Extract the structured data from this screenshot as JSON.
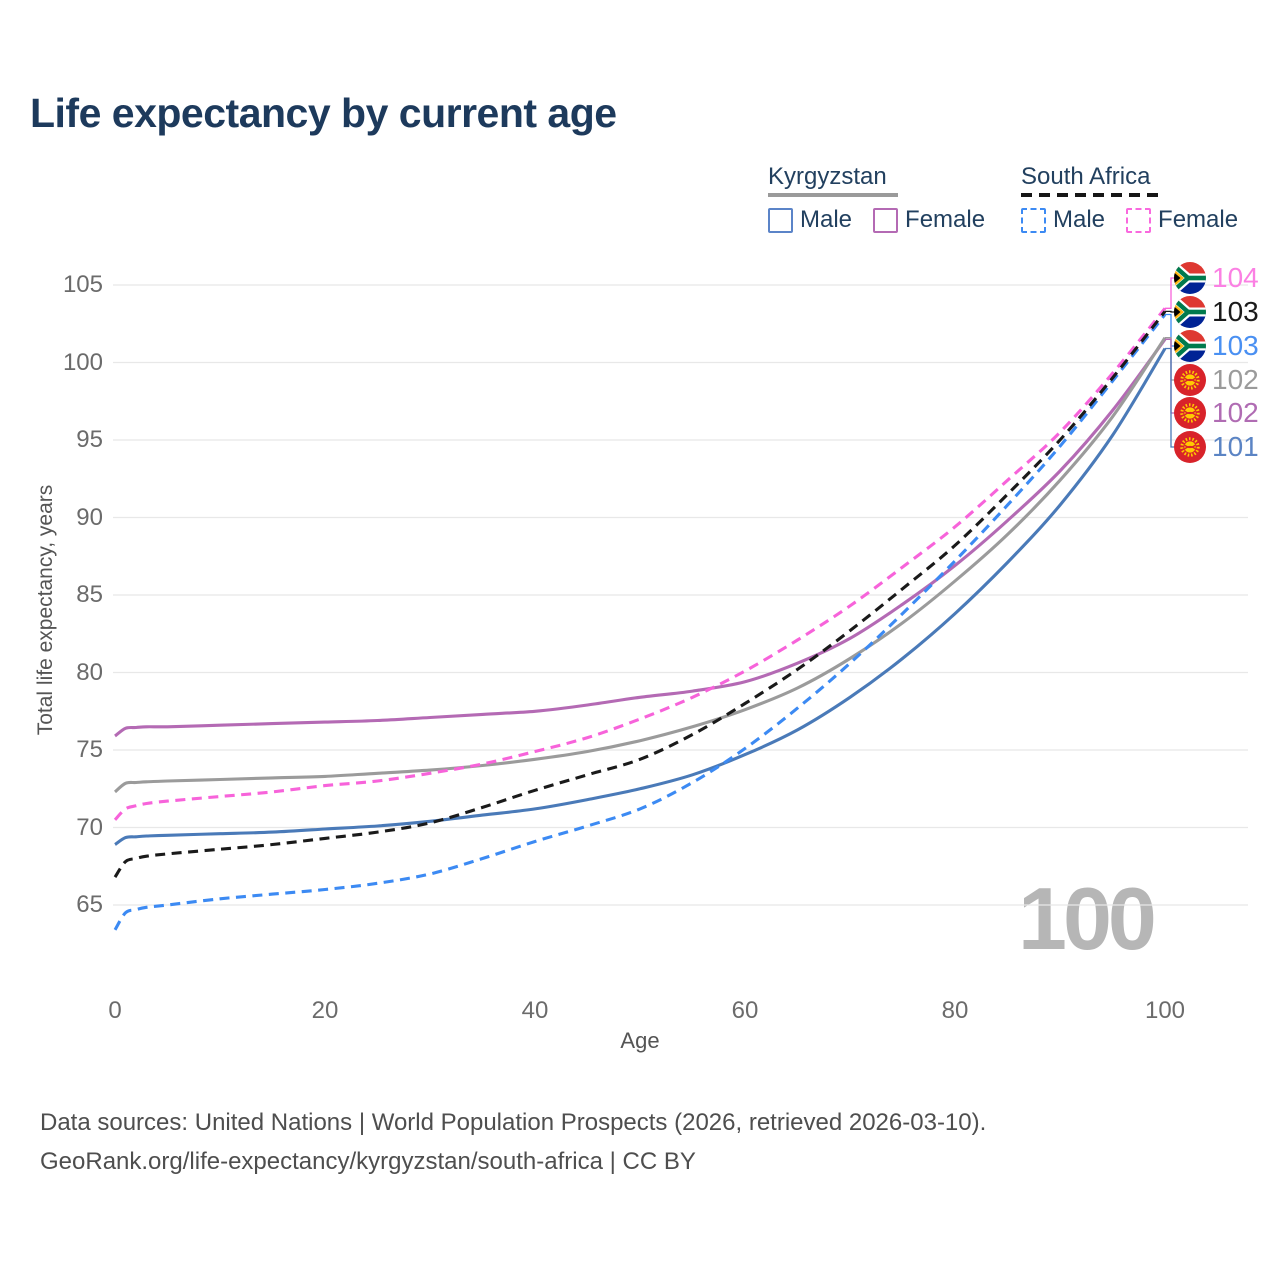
{
  "title": "Life expectancy by current age",
  "watermark": "100",
  "legend": {
    "groups": [
      {
        "country": "Kyrgyzstan",
        "line_style": "solid",
        "line_color": "#9a9a9a",
        "items": [
          {
            "label": "Male",
            "color": "#5b84c8",
            "dashed": false
          },
          {
            "label": "Female",
            "color": "#b46ab4",
            "dashed": false
          }
        ]
      },
      {
        "country": "South Africa",
        "line_style": "dashed",
        "line_color": "#161616",
        "items": [
          {
            "label": "Male",
            "color": "#3c8af3",
            "dashed": true
          },
          {
            "label": "Female",
            "color": "#f969de",
            "dashed": true
          }
        ]
      }
    ]
  },
  "footer": {
    "line1": "Data sources: United Nations | World Population Prospects (2026, retrieved 2026-03-10).",
    "line2": "GeoRank.org/life-expectancy/kyrgyzstan/south-africa | CC BY"
  },
  "chart_data": {
    "type": "line",
    "title": "Life expectancy by current age",
    "xlabel": "Age",
    "ylabel": "Total life expectancy, years",
    "xlim": [
      0,
      100
    ],
    "ylim": [
      63,
      105
    ],
    "x_ticks": [
      0,
      20,
      40,
      60,
      80,
      100
    ],
    "y_ticks": [
      65,
      70,
      75,
      80,
      85,
      90,
      95,
      100,
      105
    ],
    "grid": "horizontal",
    "legend_position": "top-right",
    "current_age_frame": "100",
    "x": [
      0,
      1,
      2,
      3,
      5,
      10,
      15,
      20,
      25,
      30,
      35,
      40,
      45,
      50,
      55,
      60,
      65,
      70,
      75,
      80,
      85,
      90,
      95,
      100
    ],
    "series": [
      {
        "id": "kg-male",
        "name": "Kyrgyzstan Male",
        "country": "Kyrgyzstan",
        "sex": "Male",
        "color": "#4a7ab8",
        "dashed": false,
        "flag": "kg",
        "end_label": "101",
        "label_color": "#5b84c4",
        "values": [
          68.9,
          69.35,
          69.4,
          69.45,
          69.5,
          69.6,
          69.7,
          69.9,
          70.1,
          70.4,
          70.8,
          71.2,
          71.8,
          72.5,
          73.4,
          74.7,
          76.3,
          78.4,
          80.9,
          83.8,
          87.1,
          90.8,
          95.3,
          100.9
        ]
      },
      {
        "id": "kg-female",
        "name": "Kyrgyzstan Female",
        "country": "Kyrgyzstan",
        "sex": "Female",
        "color": "#b46ab4",
        "dashed": false,
        "flag": "kg",
        "end_label": "102",
        "label_color": "#b06cb3",
        "values": [
          75.9,
          76.4,
          76.45,
          76.5,
          76.5,
          76.6,
          76.7,
          76.8,
          76.9,
          77.1,
          77.3,
          77.5,
          77.9,
          78.4,
          78.8,
          79.4,
          80.6,
          82.2,
          84.4,
          86.9,
          89.8,
          93.0,
          96.9,
          101.5
        ]
      },
      {
        "id": "kg-total",
        "name": "Kyrgyzstan Total",
        "country": "Kyrgyzstan",
        "sex": "Both",
        "color": "#9b9b9b",
        "dashed": false,
        "flag": "kg",
        "end_label": "102",
        "label_color": "#9b9b9b",
        "values": [
          72.3,
          72.85,
          72.9,
          72.95,
          73.0,
          73.1,
          73.2,
          73.3,
          73.5,
          73.7,
          74.0,
          74.4,
          74.9,
          75.6,
          76.5,
          77.6,
          79.0,
          80.9,
          83.2,
          85.9,
          88.9,
          92.4,
          96.5,
          101.6
        ]
      },
      {
        "id": "za-male",
        "name": "South Africa Male",
        "country": "South Africa",
        "sex": "Male",
        "color": "#3c8af3",
        "dashed": true,
        "flag": "za",
        "end_label": "103",
        "label_color": "#4a90f2",
        "values": [
          63.4,
          64.5,
          64.7,
          64.85,
          65.0,
          65.4,
          65.7,
          66.0,
          66.4,
          67.0,
          68.0,
          69.1,
          70.1,
          71.2,
          72.9,
          75.1,
          77.7,
          80.6,
          83.8,
          87.2,
          90.8,
          94.6,
          98.8,
          103.1
        ]
      },
      {
        "id": "za-female",
        "name": "South Africa Female",
        "country": "South Africa",
        "sex": "Female",
        "color": "#f763da",
        "dashed": true,
        "flag": "za",
        "end_label": "104",
        "label_color": "#fb80e3",
        "values": [
          70.5,
          71.2,
          71.4,
          71.55,
          71.7,
          72.0,
          72.3,
          72.7,
          73.0,
          73.5,
          74.1,
          74.9,
          75.8,
          77.0,
          78.4,
          80.1,
          82.1,
          84.3,
          86.8,
          89.4,
          92.4,
          95.5,
          99.3,
          103.5
        ]
      },
      {
        "id": "za-total",
        "name": "South Africa Total",
        "country": "South Africa",
        "sex": "Both",
        "color": "#1a1a1a",
        "dashed": true,
        "flag": "za",
        "end_label": "103",
        "label_color": "#1a1a1a",
        "values": [
          66.8,
          67.8,
          68.0,
          68.15,
          68.3,
          68.6,
          68.9,
          69.3,
          69.7,
          70.3,
          71.3,
          72.4,
          73.4,
          74.4,
          76.0,
          78.0,
          80.2,
          82.7,
          85.4,
          88.2,
          91.5,
          95.0,
          99.0,
          103.3
        ]
      }
    ]
  }
}
